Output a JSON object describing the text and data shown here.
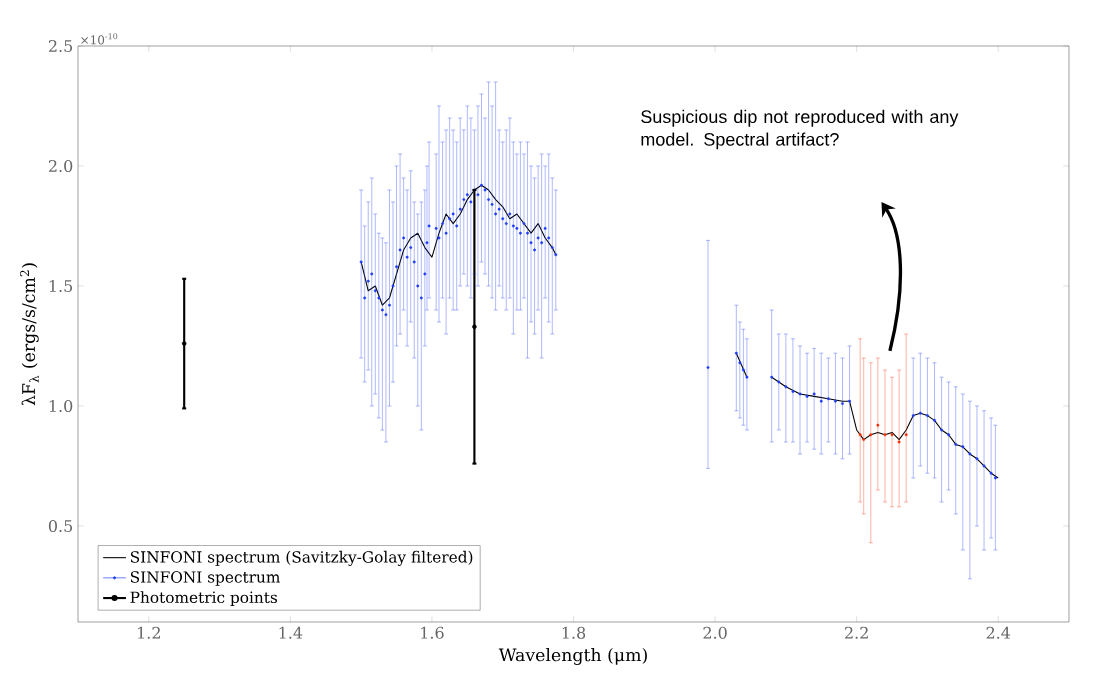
{
  "chart_data": {
    "type": "scatter",
    "xlabel": "Wavelength (μm)",
    "ylabel": "λF$_{λ}$ (ergs/s/cm$^{2}$)",
    "annotations": [
      "×10$^{-10}$",
      "Suspicious dip not reproduced with any model. Spectral artifact?"
    ],
    "xlim": [
      1.1,
      2.5
    ],
    "ylim": [
      0.1,
      2.5
    ],
    "xticks": [
      1.2,
      1.4,
      1.6,
      1.8,
      {
        "value": 2.0,
        "label": "2.0"
      },
      2.2,
      2.4
    ],
    "yticks": [
      0.5,
      {
        "value": 1.0,
        "label": "1.0"
      },
      1.5,
      {
        "value": 2.0,
        "label": "2.0"
      },
      2.5
    ],
    "grid": false,
    "legend": "bottom left",
    "series": [
      {
        "name": "SINFONI spectrum (Savitzky-Golay filtered)",
        "type": "line",
        "color": "#000000",
        "line_style": "solid",
        "x": [
          1.5,
          1.51,
          1.52,
          1.53,
          1.54,
          1.55,
          1.56,
          1.57,
          1.58,
          1.59,
          1.6,
          1.61,
          1.62,
          1.63,
          1.64,
          1.65,
          1.66,
          1.67,
          1.68,
          1.69,
          1.7,
          1.71,
          1.72,
          1.73,
          1.74,
          1.75,
          1.76,
          1.77,
          1.775,
          1.9,
          2.03,
          2.045,
          2.06,
          2.08,
          2.1,
          2.12,
          2.14,
          2.16,
          2.18,
          2.19,
          2.2,
          2.21,
          2.22,
          2.23,
          2.24,
          2.25,
          2.26,
          2.27,
          2.28,
          2.29,
          2.3,
          2.31,
          2.32,
          2.33,
          2.34,
          2.35,
          2.36,
          2.37,
          2.38,
          2.39,
          2.4
        ],
        "values": [
          1.6,
          1.48,
          1.5,
          1.42,
          1.45,
          1.55,
          1.65,
          1.7,
          1.72,
          1.66,
          1.62,
          1.72,
          1.8,
          1.76,
          1.8,
          1.86,
          1.9,
          1.92,
          1.9,
          1.86,
          1.83,
          1.78,
          1.8,
          1.76,
          1.72,
          1.76,
          1.7,
          1.66,
          1.63,
          null,
          1.22,
          1.12,
          null,
          1.12,
          1.08,
          1.05,
          1.04,
          1.03,
          1.02,
          1.02,
          0.9,
          0.86,
          0.88,
          0.89,
          0.88,
          0.89,
          0.86,
          0.9,
          0.96,
          0.97,
          0.96,
          0.94,
          0.9,
          0.88,
          0.84,
          0.83,
          0.8,
          0.78,
          0.75,
          0.72,
          0.7
        ]
      },
      {
        "name": "SINFONI spectrum",
        "type": "scatter",
        "color": "#1f3dff",
        "x": [
          1.5,
          1.505,
          1.51,
          1.515,
          1.52,
          1.525,
          1.53,
          1.535,
          1.54,
          1.545,
          1.55,
          1.555,
          1.56,
          1.565,
          1.57,
          1.575,
          1.58,
          1.585,
          1.59,
          1.593,
          1.596,
          1.606,
          1.61,
          1.615,
          1.62,
          1.625,
          1.63,
          1.635,
          1.64,
          1.645,
          1.65,
          1.655,
          1.66,
          1.665,
          1.67,
          1.675,
          1.68,
          1.685,
          1.69,
          1.695,
          1.7,
          1.705,
          1.71,
          1.715,
          1.72,
          1.725,
          1.73,
          1.735,
          1.74,
          1.745,
          1.75,
          1.755,
          1.76,
          1.765,
          1.77,
          1.775,
          1.99,
          2.03,
          2.035,
          2.04,
          2.045,
          2.08,
          2.09,
          2.1,
          2.11,
          2.12,
          2.13,
          2.14,
          2.15,
          2.16,
          2.17,
          2.18,
          2.19,
          2.28,
          2.29,
          2.3,
          2.31,
          2.32,
          2.33,
          2.34,
          2.35,
          2.36,
          2.37,
          2.38,
          2.39,
          2.396
        ],
        "values": [
          1.6,
          1.45,
          1.52,
          1.55,
          1.48,
          1.45,
          1.4,
          1.38,
          1.42,
          1.5,
          1.58,
          1.65,
          1.7,
          1.62,
          1.66,
          1.6,
          1.5,
          1.45,
          1.55,
          1.68,
          1.75,
          1.74,
          1.7,
          1.76,
          1.72,
          1.78,
          1.8,
          1.75,
          1.82,
          1.86,
          1.88,
          1.85,
          1.9,
          1.88,
          1.92,
          1.9,
          1.86,
          1.84,
          1.8,
          1.82,
          1.78,
          1.76,
          1.8,
          1.75,
          1.74,
          1.72,
          1.76,
          1.72,
          1.68,
          1.65,
          1.7,
          1.68,
          1.74,
          1.7,
          1.66,
          1.63,
          1.16,
          1.22,
          1.18,
          1.15,
          1.12,
          1.12,
          1.1,
          1.08,
          1.06,
          1.05,
          1.04,
          1.05,
          1.02,
          1.03,
          1.02,
          1.01,
          1.02,
          0.96,
          0.97,
          0.96,
          0.94,
          0.9,
          0.88,
          0.84,
          0.83,
          0.8,
          0.78,
          0.75,
          0.72,
          0.7
        ],
        "errors": [
          [
            1.2,
            1.9
          ],
          [
            1.1,
            1.75
          ],
          [
            1.15,
            1.85
          ],
          [
            1.0,
            1.95
          ],
          [
            1.05,
            1.8
          ],
          [
            0.95,
            1.72
          ],
          [
            0.9,
            1.7
          ],
          [
            0.85,
            1.68
          ],
          [
            1.0,
            1.9
          ],
          [
            1.1,
            1.85
          ],
          [
            1.25,
            2.0
          ],
          [
            1.3,
            2.05
          ],
          [
            1.4,
            1.95
          ],
          [
            1.25,
            1.9
          ],
          [
            1.35,
            1.98
          ],
          [
            1.2,
            1.85
          ],
          [
            1.0,
            1.8
          ],
          [
            0.9,
            1.85
          ],
          [
            1.25,
            1.9
          ],
          [
            1.4,
            2.0
          ],
          [
            1.45,
            2.1
          ],
          [
            1.4,
            2.05
          ],
          [
            1.35,
            2.25
          ],
          [
            1.45,
            2.1
          ],
          [
            1.3,
            2.15
          ],
          [
            1.45,
            2.2
          ],
          [
            1.4,
            2.15
          ],
          [
            1.4,
            2.1
          ],
          [
            1.5,
            2.2
          ],
          [
            1.55,
            2.15
          ],
          [
            1.5,
            2.25
          ],
          [
            1.45,
            2.2
          ],
          [
            1.55,
            2.15
          ],
          [
            1.5,
            2.25
          ],
          [
            1.6,
            2.3
          ],
          [
            1.55,
            2.2
          ],
          [
            1.5,
            2.35
          ],
          [
            1.45,
            2.25
          ],
          [
            1.4,
            2.35
          ],
          [
            1.5,
            2.15
          ],
          [
            1.45,
            2.1
          ],
          [
            1.4,
            2.15
          ],
          [
            1.45,
            2.2
          ],
          [
            1.3,
            2.1
          ],
          [
            1.4,
            2.05
          ],
          [
            1.4,
            2.1
          ],
          [
            1.45,
            2.05
          ],
          [
            1.2,
            2.1
          ],
          [
            1.35,
            2.0
          ],
          [
            1.3,
            1.95
          ],
          [
            1.4,
            2.0
          ],
          [
            1.2,
            2.05
          ],
          [
            1.45,
            2.0
          ],
          [
            1.35,
            2.05
          ],
          [
            1.3,
            1.95
          ],
          [
            1.4,
            1.9
          ],
          [
            0.74,
            1.69
          ],
          [
            0.98,
            1.42
          ],
          [
            0.95,
            1.35
          ],
          [
            0.92,
            1.32
          ],
          [
            0.9,
            1.28
          ],
          [
            0.85,
            1.4
          ],
          [
            0.9,
            1.3
          ],
          [
            0.85,
            1.3
          ],
          [
            0.85,
            1.28
          ],
          [
            0.8,
            1.25
          ],
          [
            0.85,
            1.22
          ],
          [
            0.82,
            1.24
          ],
          [
            0.8,
            1.22
          ],
          [
            0.85,
            1.2
          ],
          [
            0.8,
            1.22
          ],
          [
            0.78,
            1.2
          ],
          [
            0.8,
            1.25
          ],
          [
            0.7,
            1.2
          ],
          [
            0.75,
            1.22
          ],
          [
            0.72,
            1.2
          ],
          [
            0.7,
            1.18
          ],
          [
            0.6,
            1.12
          ],
          [
            0.65,
            1.1
          ],
          [
            0.55,
            1.08
          ],
          [
            0.4,
            1.05
          ],
          [
            0.28,
            1.02
          ],
          [
            0.5,
            1.0
          ],
          [
            0.4,
            0.98
          ],
          [
            0.45,
            0.95
          ],
          [
            0.4,
            0.92
          ]
        ]
      },
      {
        "type": "scatter",
        "color": "#ff2a00",
        "x": [
          2.205,
          2.21,
          2.22,
          2.23,
          2.24,
          2.25,
          2.26,
          2.27
        ],
        "values": [
          0.88,
          0.86,
          0.88,
          0.92,
          0.88,
          0.88,
          0.85,
          0.88
        ],
        "errors": [
          [
            0.6,
            1.28
          ],
          [
            0.55,
            1.2
          ],
          [
            0.43,
            1.18
          ],
          [
            0.65,
            1.2
          ],
          [
            0.6,
            1.15
          ],
          [
            0.58,
            1.12
          ],
          [
            0.58,
            1.15
          ],
          [
            0.6,
            1.3
          ]
        ]
      },
      {
        "name": "Photometric points",
        "type": "scatter",
        "marker": "circle",
        "color": "#000000",
        "x": [
          1.25,
          1.66
        ],
        "values": [
          1.26,
          1.33
        ],
        "errors": [
          [
            0.99,
            1.53
          ],
          [
            0.76,
            1.9
          ]
        ]
      }
    ]
  }
}
